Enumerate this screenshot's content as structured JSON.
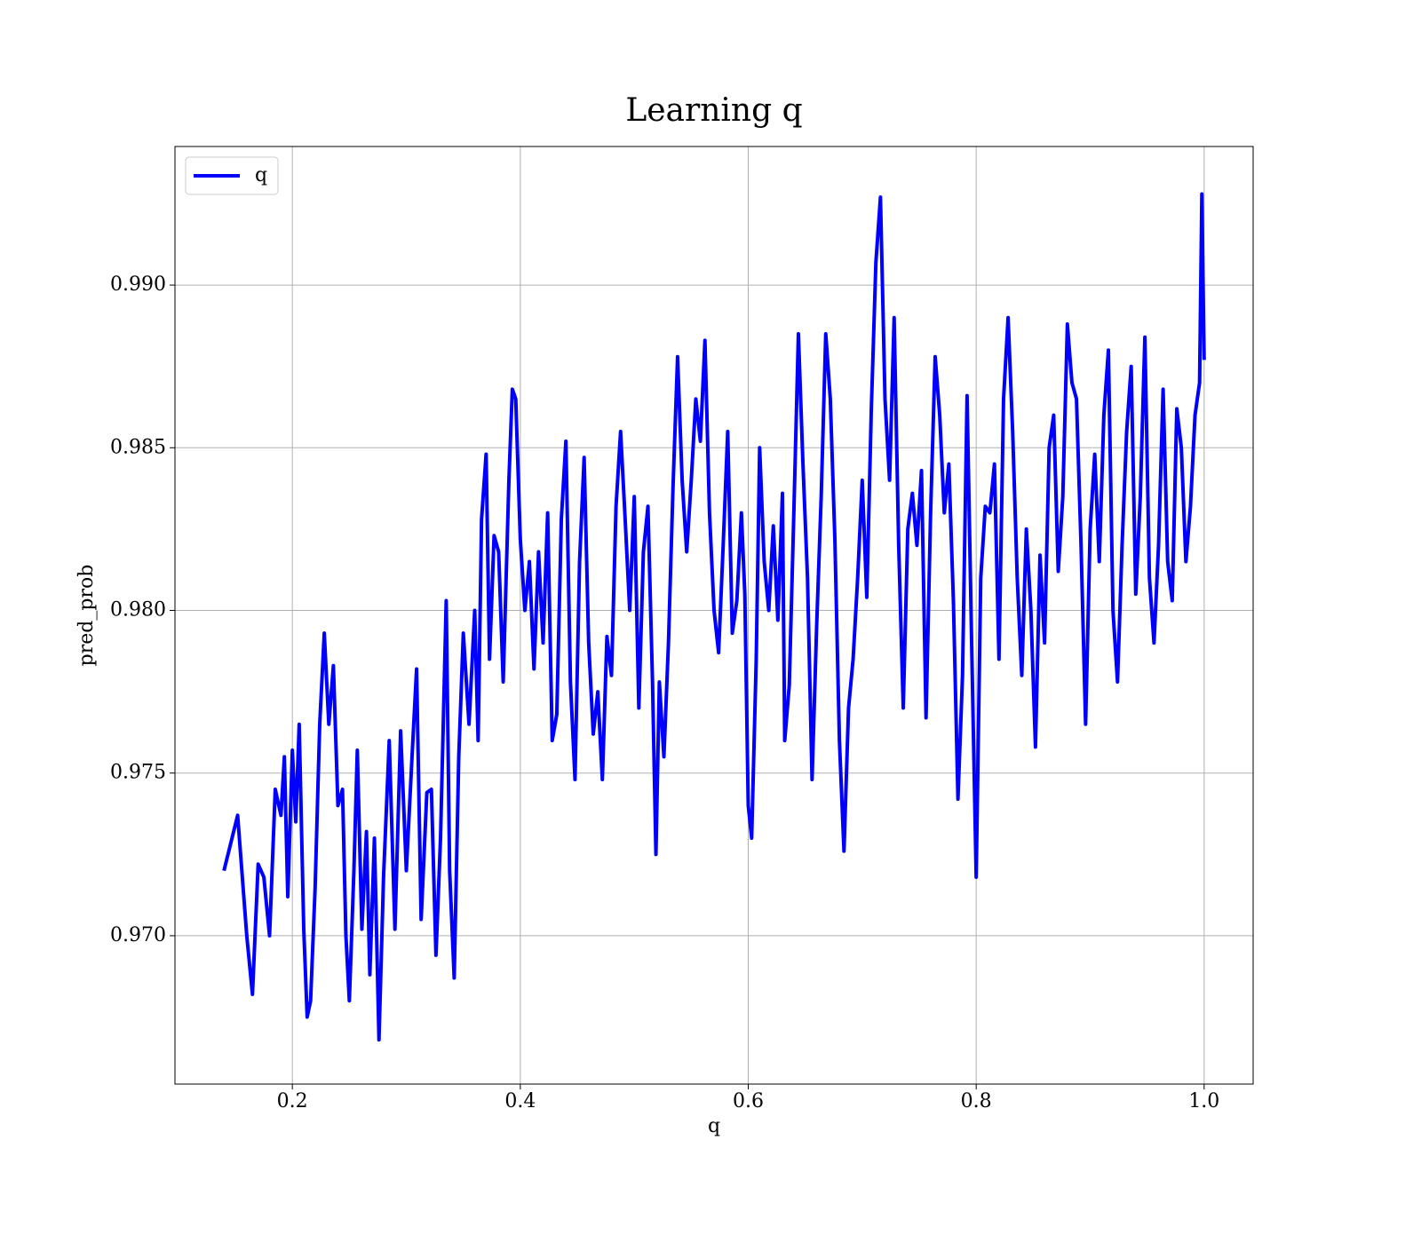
{
  "chart_data": {
    "type": "line",
    "title": "Learning q",
    "xlabel": "q",
    "ylabel": "pred_prob",
    "xlim": [
      0.097,
      1.043
    ],
    "ylim": [
      0.96544,
      0.99426
    ],
    "xticks": [
      0.2,
      0.4,
      0.6,
      0.8,
      {
        "value": 1.0,
        "label": "1.0"
      }
    ],
    "yticks": [
      {
        "value": 0.97,
        "label": "0.970"
      },
      {
        "value": 0.975,
        "label": "0.975"
      },
      {
        "value": 0.98,
        "label": "0.980"
      },
      {
        "value": 0.985,
        "label": "0.985"
      },
      {
        "value": 0.99,
        "label": "0.990"
      }
    ],
    "grid": true,
    "legend": "upper left",
    "x": [
      0.14,
      0.152,
      0.16,
      0.165,
      0.17,
      0.175,
      0.18,
      0.185,
      0.19,
      0.193,
      0.196,
      0.2,
      0.203,
      0.206,
      0.21,
      0.213,
      0.216,
      0.22,
      0.224,
      0.228,
      0.232,
      0.236,
      0.24,
      0.244,
      0.247,
      0.25,
      0.254,
      0.257,
      0.261,
      0.265,
      0.268,
      0.272,
      0.276,
      0.28,
      0.285,
      0.29,
      0.295,
      0.3,
      0.305,
      0.309,
      0.313,
      0.318,
      0.322,
      0.326,
      0.33,
      0.335,
      0.338,
      0.342,
      0.346,
      0.35,
      0.355,
      0.36,
      0.363,
      0.366,
      0.37,
      0.373,
      0.377,
      0.381,
      0.385,
      0.39,
      0.393,
      0.396,
      0.4,
      0.404,
      0.408,
      0.412,
      0.416,
      0.42,
      0.424,
      0.428,
      0.432,
      0.436,
      0.44,
      0.444,
      0.448,
      0.452,
      0.456,
      0.46,
      0.464,
      0.468,
      0.472,
      0.476,
      0.48,
      0.484,
      0.488,
      0.492,
      0.496,
      0.5,
      0.504,
      0.508,
      0.512,
      0.516,
      0.519,
      0.522,
      0.526,
      0.53,
      0.534,
      0.538,
      0.542,
      0.546,
      0.55,
      0.554,
      0.558,
      0.562,
      0.566,
      0.57,
      0.574,
      0.578,
      0.582,
      0.586,
      0.59,
      0.594,
      0.597,
      0.6,
      0.603,
      0.607,
      0.61,
      0.614,
      0.618,
      0.622,
      0.626,
      0.63,
      0.632,
      0.636,
      0.64,
      0.644,
      0.648,
      0.652,
      0.656,
      0.66,
      0.664,
      0.668,
      0.672,
      0.676,
      0.68,
      0.684,
      0.688,
      0.692,
      0.696,
      0.7,
      0.704,
      0.708,
      0.712,
      0.716,
      0.72,
      0.724,
      0.728,
      0.732,
      0.736,
      0.74,
      0.744,
      0.748,
      0.752,
      0.756,
      0.76,
      0.764,
      0.768,
      0.772,
      0.776,
      0.78,
      0.784,
      0.788,
      0.792,
      0.796,
      0.8,
      0.804,
      0.808,
      0.812,
      0.816,
      0.82,
      0.824,
      0.828,
      0.832,
      0.836,
      0.84,
      0.844,
      0.848,
      0.852,
      0.856,
      0.86,
      0.864,
      0.868,
      0.872,
      0.876,
      0.88,
      0.884,
      0.888,
      0.892,
      0.896,
      0.9,
      0.904,
      0.908,
      0.912,
      0.916,
      0.92,
      0.924,
      0.928,
      0.932,
      0.936,
      0.94,
      0.944,
      0.948,
      0.952,
      0.956,
      0.96,
      0.964,
      0.968,
      0.972,
      0.976,
      0.98,
      0.984,
      0.988,
      0.992,
      0.996,
      0.998,
      1.0
    ],
    "series": [
      {
        "name": "q",
        "color": "#0000ff",
        "values": [
          0.972,
          0.9737,
          0.97,
          0.9682,
          0.9722,
          0.9718,
          0.97,
          0.9745,
          0.9737,
          0.9755,
          0.9712,
          0.9757,
          0.9735,
          0.9765,
          0.9702,
          0.9675,
          0.968,
          0.9715,
          0.9765,
          0.9793,
          0.9765,
          0.9783,
          0.974,
          0.9745,
          0.97,
          0.968,
          0.972,
          0.9757,
          0.9702,
          0.9732,
          0.9688,
          0.973,
          0.9668,
          0.9718,
          0.976,
          0.9702,
          0.9763,
          0.972,
          0.9755,
          0.9782,
          0.9705,
          0.9744,
          0.9745,
          0.9694,
          0.973,
          0.9803,
          0.972,
          0.9687,
          0.9755,
          0.9793,
          0.9765,
          0.98,
          0.976,
          0.9828,
          0.9848,
          0.9785,
          0.9823,
          0.9818,
          0.9778,
          0.984,
          0.9868,
          0.9865,
          0.9822,
          0.98,
          0.9815,
          0.9782,
          0.9818,
          0.979,
          0.983,
          0.976,
          0.9768,
          0.9828,
          0.9852,
          0.9778,
          0.9748,
          0.9815,
          0.9847,
          0.979,
          0.9762,
          0.9775,
          0.9748,
          0.9792,
          0.978,
          0.9832,
          0.9855,
          0.9828,
          0.98,
          0.9835,
          0.977,
          0.9818,
          0.9832,
          0.9778,
          0.9725,
          0.9778,
          0.9755,
          0.979,
          0.9838,
          0.9878,
          0.984,
          0.9818,
          0.984,
          0.9865,
          0.9852,
          0.9883,
          0.983,
          0.98,
          0.9787,
          0.982,
          0.9855,
          0.9793,
          0.9803,
          0.983,
          0.9805,
          0.974,
          0.973,
          0.9785,
          0.985,
          0.9815,
          0.98,
          0.9826,
          0.9797,
          0.9836,
          0.976,
          0.9777,
          0.983,
          0.9885,
          0.9845,
          0.981,
          0.9748,
          0.9795,
          0.9835,
          0.9885,
          0.9865,
          0.9822,
          0.976,
          0.9726,
          0.977,
          0.9785,
          0.981,
          0.984,
          0.9804,
          0.9862,
          0.9907,
          0.9927,
          0.9865,
          0.984,
          0.989,
          0.982,
          0.977,
          0.9825,
          0.9836,
          0.982,
          0.9843,
          0.9767,
          0.983,
          0.9878,
          0.986,
          0.983,
          0.9845,
          0.9803,
          0.9742,
          0.978,
          0.9866,
          0.979,
          0.9718,
          0.981,
          0.9832,
          0.983,
          0.9845,
          0.9785,
          0.9865,
          0.989,
          0.9855,
          0.981,
          0.978,
          0.9825,
          0.98,
          0.9758,
          0.9817,
          0.979,
          0.985,
          0.986,
          0.9812,
          0.9835,
          0.9888,
          0.987,
          0.9865,
          0.982,
          0.9765,
          0.9825,
          0.9848,
          0.9815,
          0.986,
          0.988,
          0.98,
          0.9778,
          0.982,
          0.9855,
          0.9875,
          0.9805,
          0.9835,
          0.9884,
          0.981,
          0.979,
          0.982,
          0.9868,
          0.9815,
          0.9803,
          0.9862,
          0.985,
          0.9815,
          0.9832,
          0.986,
          0.987,
          0.9928,
          0.9877
        ]
      }
    ]
  }
}
